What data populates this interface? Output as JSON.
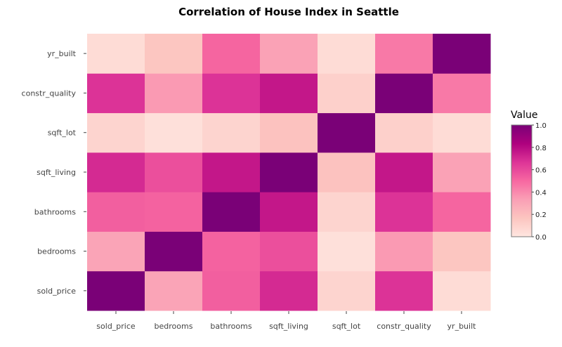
{
  "chart_data": {
    "type": "heatmap",
    "title": "Correlation of House Index in Seattle",
    "x": [
      "sold_price",
      "bedrooms",
      "bathrooms",
      "sqft_living",
      "sqft_lot",
      "constr_quality",
      "yr_built"
    ],
    "y": [
      "sold_price",
      "bedrooms",
      "bathrooms",
      "sqft_living",
      "sqft_lot",
      "constr_quality",
      "yr_built"
    ],
    "z": [
      [
        1.0,
        0.31,
        0.53,
        0.7,
        0.09,
        0.67,
        0.05
      ],
      [
        0.31,
        1.0,
        0.52,
        0.58,
        0.03,
        0.35,
        0.16
      ],
      [
        0.53,
        0.52,
        1.0,
        0.76,
        0.09,
        0.67,
        0.51
      ],
      [
        0.7,
        0.58,
        0.76,
        1.0,
        0.18,
        0.76,
        0.32
      ],
      [
        0.09,
        0.03,
        0.09,
        0.18,
        1.0,
        0.11,
        0.05
      ],
      [
        0.67,
        0.35,
        0.67,
        0.76,
        0.11,
        1.0,
        0.45
      ],
      [
        0.05,
        0.16,
        0.51,
        0.32,
        0.05,
        0.45,
        1.0
      ]
    ],
    "zlim": [
      0,
      1
    ],
    "colorscale": [
      "#ffe6e0",
      "#fcc5c0",
      "#fa9fb5",
      "#f768a1",
      "#dd3497",
      "#ae017e",
      "#7a0177"
    ],
    "legend": {
      "title": "Value",
      "ticks": [
        "0.0",
        "0.2",
        "0.4",
        "0.6",
        "0.8",
        "1.0"
      ],
      "position": "right"
    }
  }
}
